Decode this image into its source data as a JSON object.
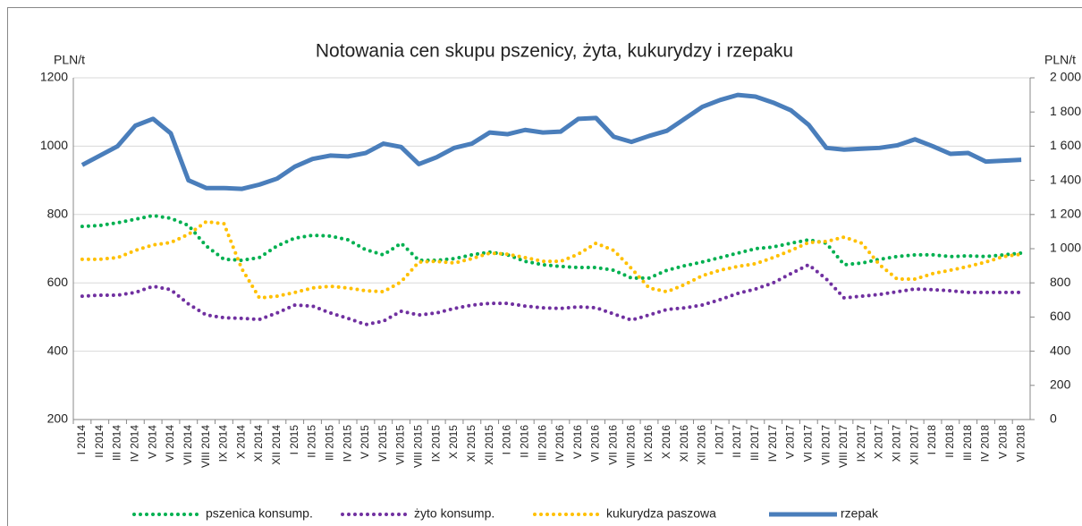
{
  "chart_data": {
    "type": "line",
    "title": "Notowania cen skupu pszenicy, żyta, kukurydzy i rzepaku",
    "y_label": "PLN/t",
    "y2_label": "PLN/t",
    "categories": [
      "I 2014",
      "II 2014",
      "III 2014",
      "IV 2014",
      "V 2014",
      "VI 2014",
      "VII 2014",
      "VIII 2014",
      "IX 2014",
      "X 2014",
      "XI 2014",
      "XII 2014",
      "I 2015",
      "II 2015",
      "III 2015",
      "IV 2015",
      "V 2015",
      "VI 2015",
      "VII 2015",
      "VIII 2015",
      "IX 2015",
      "X 2015",
      "XI 2015",
      "XII 2015",
      "I 2016",
      "II 2016",
      "III 2016",
      "IV 2016",
      "V 2016",
      "VI 2016",
      "VII 2016",
      "VIII 2016",
      "IX 2016",
      "X 2016",
      "XI 2016",
      "XII 2016",
      "I 2017",
      "II 2017",
      "III 2017",
      "IV 2017",
      "V 2017",
      "VI 2017",
      "VII 2017",
      "VIII 2017",
      "IX 2017",
      "X 2017",
      "XI 2017",
      "XII 2017",
      "I 2018",
      "II 2018",
      "III 2018",
      "IV 2018",
      "V 2018",
      "VI 2018"
    ],
    "series": [
      {
        "name": "pszenica konsump.",
        "color": "#00b050",
        "style": "dotted",
        "values": [
          765,
          768,
          776,
          786,
          797,
          789,
          768,
          708,
          669,
          666,
          674,
          708,
          731,
          739,
          737,
          726,
          697,
          682,
          716,
          666,
          666,
          671,
          682,
          690,
          682,
          663,
          653,
          648,
          645,
          645,
          637,
          614,
          614,
          637,
          650,
          661,
          674,
          687,
          700,
          705,
          716,
          726,
          716,
          653,
          658,
          669,
          677,
          682,
          682,
          677,
          679,
          677,
          682,
          687
        ]
      },
      {
        "name": "żyto konsump.",
        "color": "#7030a0",
        "style": "dotted",
        "values": [
          561,
          564,
          564,
          572,
          590,
          580,
          538,
          506,
          498,
          496,
          493,
          512,
          535,
          532,
          512,
          496,
          478,
          488,
          517,
          506,
          512,
          525,
          535,
          540,
          540,
          532,
          527,
          525,
          530,
          527,
          509,
          491,
          506,
          522,
          527,
          535,
          551,
          569,
          582,
          600,
          627,
          653,
          611,
          556,
          561,
          566,
          574,
          582,
          580,
          577,
          572,
          572,
          572,
          572
        ]
      },
      {
        "name": "kukurydza paszowa",
        "color": "#ffc000",
        "style": "dotted",
        "values": [
          669,
          669,
          674,
          695,
          711,
          718,
          742,
          779,
          773,
          642,
          556,
          561,
          572,
          585,
          590,
          585,
          577,
          574,
          603,
          661,
          663,
          658,
          671,
          687,
          684,
          674,
          663,
          663,
          684,
          716,
          695,
          642,
          585,
          574,
          595,
          621,
          637,
          648,
          656,
          674,
          695,
          718,
          721,
          734,
          716,
          653,
          611,
          611,
          627,
          637,
          648,
          661,
          677,
          684
        ]
      },
      {
        "name": "rzepak",
        "color": "#4a7ebb",
        "style": "solid",
        "axis": "y2",
        "values": [
          1490,
          1545,
          1600,
          1720,
          1760,
          1675,
          1400,
          1355,
          1355,
          1350,
          1375,
          1410,
          1480,
          1525,
          1545,
          1540,
          1560,
          1615,
          1595,
          1495,
          1535,
          1590,
          1615,
          1680,
          1670,
          1695,
          1680,
          1685,
          1760,
          1765,
          1655,
          1625,
          1660,
          1690,
          1760,
          1830,
          1870,
          1900,
          1890,
          1855,
          1810,
          1725,
          1590,
          1580,
          1585,
          1590,
          1605,
          1640,
          1600,
          1555,
          1560,
          1510,
          1515,
          1520
        ]
      }
    ],
    "ylim": [
      200,
      1200
    ],
    "yticks": [
      200,
      400,
      600,
      800,
      1000,
      1200
    ],
    "y2lim": [
      0,
      2000
    ],
    "y2ticks": [
      0,
      200,
      400,
      600,
      800,
      {
        "value": 1000,
        "label": "1 000"
      },
      {
        "value": 1200,
        "label": "1 200"
      },
      {
        "value": 1400,
        "label": "1 400"
      },
      {
        "value": 1600,
        "label": "1 600"
      },
      {
        "value": 1800,
        "label": "1 800"
      },
      {
        "value": 2000,
        "label": "2 000"
      }
    ],
    "grid": true,
    "legend": "bottom"
  }
}
